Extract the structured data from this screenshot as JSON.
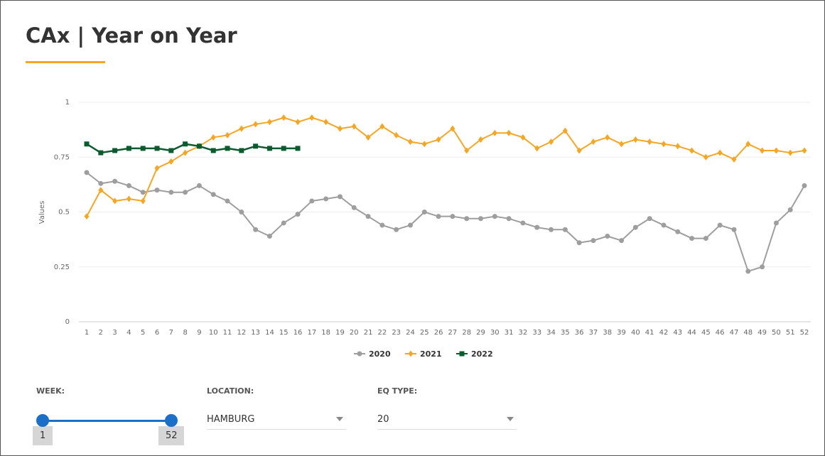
{
  "header": {
    "title": "CAx | Year on Year"
  },
  "chart_data": {
    "type": "line",
    "y_label": "Values",
    "categories": [
      1,
      2,
      3,
      4,
      5,
      6,
      7,
      8,
      9,
      10,
      11,
      12,
      13,
      14,
      15,
      16,
      17,
      18,
      19,
      20,
      21,
      22,
      23,
      24,
      25,
      26,
      27,
      28,
      29,
      30,
      31,
      32,
      33,
      34,
      35,
      36,
      37,
      38,
      39,
      40,
      41,
      42,
      43,
      44,
      45,
      46,
      47,
      48,
      49,
      50,
      51,
      52
    ],
    "ylim": [
      0,
      1
    ],
    "yticks": [
      0,
      0.25,
      0.5,
      0.75,
      1
    ],
    "grid": true,
    "legend": "bottom",
    "series": [
      {
        "name": "2020",
        "color": "#9e9e9e",
        "marker": "circle",
        "values": [
          0.68,
          0.63,
          0.64,
          0.62,
          0.59,
          0.6,
          0.59,
          0.59,
          0.62,
          0.58,
          0.55,
          0.5,
          0.42,
          0.39,
          0.45,
          0.49,
          0.55,
          0.56,
          0.57,
          0.52,
          0.48,
          0.44,
          0.42,
          0.44,
          0.5,
          0.48,
          0.48,
          0.47,
          0.47,
          0.48,
          0.47,
          0.45,
          0.43,
          0.42,
          0.42,
          0.36,
          0.37,
          0.39,
          0.37,
          0.43,
          0.47,
          0.44,
          0.41,
          0.38,
          0.38,
          0.44,
          0.42,
          0.23,
          0.25,
          0.45,
          0.51,
          0.62
        ]
      },
      {
        "name": "2021",
        "color": "#f5a623",
        "marker": "diamond",
        "values": [
          0.48,
          0.6,
          0.55,
          0.56,
          0.55,
          0.7,
          0.73,
          0.77,
          0.8,
          0.84,
          0.85,
          0.88,
          0.9,
          0.91,
          0.93,
          0.91,
          0.93,
          0.91,
          0.88,
          0.89,
          0.84,
          0.89,
          0.85,
          0.82,
          0.81,
          0.83,
          0.88,
          0.78,
          0.83,
          0.86,
          0.86,
          0.84,
          0.79,
          0.82,
          0.87,
          0.78,
          0.82,
          0.84,
          0.81,
          0.83,
          0.82,
          0.81,
          0.8,
          0.78,
          0.75,
          0.77,
          0.74,
          0.81,
          0.78,
          0.78,
          0.77,
          0.78
        ]
      },
      {
        "name": "2022",
        "color": "#0b5b2e",
        "marker": "square",
        "values": [
          0.81,
          0.77,
          0.78,
          0.79,
          0.79,
          0.79,
          0.78,
          0.81,
          0.8,
          0.78,
          0.79,
          0.78,
          0.8,
          0.79,
          0.79,
          0.79,
          null,
          null,
          null,
          null,
          null,
          null,
          null,
          null,
          null,
          null,
          null,
          null,
          null,
          null,
          null,
          null,
          null,
          null,
          null,
          null,
          null,
          null,
          null,
          null,
          null,
          null,
          null,
          null,
          null,
          null,
          null,
          null,
          null,
          null,
          null,
          null
        ]
      }
    ]
  },
  "filters": {
    "week": {
      "label": "WEEK:",
      "min": 1,
      "max": 52
    },
    "location": {
      "label": "LOCATION:",
      "value": "HAMBURG"
    },
    "eq_type": {
      "label": "EQ TYPE:",
      "value": "20"
    }
  }
}
